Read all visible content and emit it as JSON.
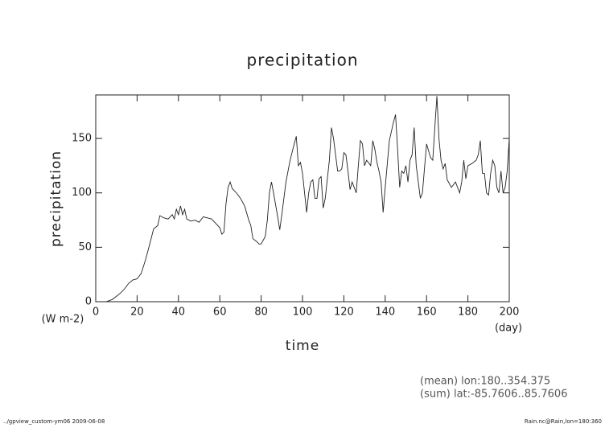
{
  "chart_data": {
    "type": "line",
    "title": "precipitation",
    "y_label": "precipitation",
    "x_label": "time",
    "y_unit": "(W m-2)",
    "x_unit": "(day)",
    "annotations": [
      "(mean) lon:180..354.375",
      "(sum) lat:-85.7606..85.7606"
    ],
    "footer_left": "../gpview_custom-ym06  2009-06-08",
    "footer_right": "Rain.nc@Rain,lon=180:360",
    "xlim": [
      0,
      200
    ],
    "ylim": [
      0,
      190
    ],
    "xticks": [
      0,
      20,
      40,
      60,
      80,
      100,
      120,
      140,
      160,
      180,
      200
    ],
    "yticks": [
      0,
      50,
      100,
      150
    ],
    "x": [
      0,
      5,
      8,
      10,
      12,
      14,
      16,
      18,
      20,
      22,
      24,
      26,
      28,
      30,
      31,
      33,
      35,
      37,
      38,
      39,
      40,
      41,
      42,
      43,
      44,
      46,
      48,
      50,
      52,
      54,
      56,
      58,
      60,
      61,
      62,
      63,
      64,
      65,
      66,
      68,
      70,
      72,
      74,
      75,
      76,
      78,
      79,
      80,
      82,
      83,
      84,
      85,
      86,
      88,
      89,
      90,
      92,
      94,
      96,
      97,
      98,
      99,
      100,
      102,
      103,
      104,
      105,
      106,
      107,
      108,
      109,
      110,
      111,
      113,
      114,
      115,
      116,
      117,
      118,
      119,
      120,
      121,
      122,
      123,
      124,
      126,
      127,
      128,
      129,
      130,
      131,
      133,
      134,
      135,
      136,
      137,
      138,
      139,
      140,
      142,
      144,
      145,
      146,
      147,
      148,
      149,
      150,
      151,
      152,
      153,
      154,
      155,
      156,
      157,
      158,
      160,
      162,
      163,
      164,
      165,
      166,
      167,
      168,
      169,
      170,
      172,
      174,
      176,
      177,
      178,
      179,
      180,
      182,
      184,
      185,
      186,
      187,
      188,
      189,
      190,
      191,
      192,
      193,
      194,
      195,
      196,
      197,
      198,
      199,
      200
    ],
    "series": [
      {
        "name": "precipitation",
        "color": "#222222",
        "values": [
          0,
          0,
          2,
          5,
          8,
          12,
          17,
          20,
          21,
          26,
          38,
          52,
          67,
          70,
          79,
          77,
          76,
          80,
          76,
          85,
          80,
          88,
          80,
          85,
          76,
          74,
          75,
          73,
          78,
          77,
          76,
          72,
          68,
          62,
          64,
          90,
          105,
          110,
          104,
          100,
          95,
          88,
          75,
          70,
          58,
          55,
          53,
          53,
          60,
          75,
          100,
          110,
          100,
          78,
          66,
          80,
          110,
          130,
          145,
          152,
          125,
          128,
          118,
          82,
          100,
          110,
          112,
          95,
          95,
          113,
          115,
          86,
          95,
          130,
          160,
          150,
          135,
          120,
          120,
          122,
          137,
          135,
          120,
          103,
          110,
          100,
          125,
          148,
          145,
          125,
          130,
          125,
          148,
          140,
          128,
          120,
          110,
          82,
          105,
          148,
          165,
          172,
          140,
          105,
          120,
          118,
          125,
          110,
          130,
          135,
          160,
          125,
          110,
          95,
          100,
          145,
          132,
          130,
          160,
          189,
          150,
          130,
          122,
          127,
          112,
          105,
          110,
          100,
          110,
          130,
          113,
          125,
          127,
          130,
          135,
          148,
          118,
          118,
          100,
          98,
          118,
          130,
          125,
          105,
          100,
          120,
          100,
          105,
          120,
          150
        ]
      }
    ]
  }
}
